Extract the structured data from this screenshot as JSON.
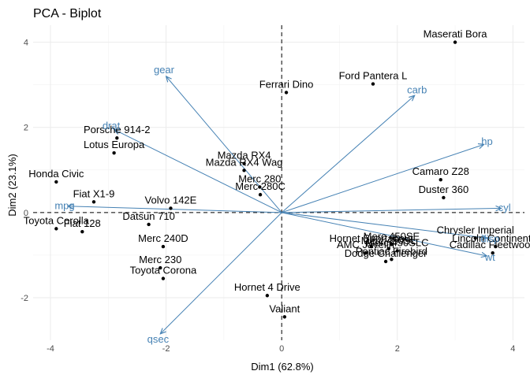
{
  "chart_data": {
    "type": "scatter",
    "title": "PCA - Biplot",
    "xlabel": "Dim1 (62.8%)",
    "ylabel": "Dim2 (23.1%)",
    "xlim": [
      -4.3,
      4.2
    ],
    "ylim": [
      -3.0,
      4.4
    ],
    "xticks": [
      -4,
      -2,
      0,
      2,
      4
    ],
    "yticks": [
      -2,
      0,
      2,
      4
    ],
    "grid": true,
    "reference_lines": {
      "x": 0,
      "y": 0,
      "style": "dashed"
    },
    "point_color": "#000000",
    "arrow_color": "#4682b4",
    "points": [
      {
        "label": "Maserati Bora",
        "x": 3.0,
        "y": 4.0
      },
      {
        "label": "Ford Pantera L",
        "x": 1.58,
        "y": 3.02
      },
      {
        "label": "Ferrari Dino",
        "x": 0.08,
        "y": 2.82
      },
      {
        "label": "Porsche 914-2",
        "x": -2.85,
        "y": 1.75
      },
      {
        "label": "Lotus Europa",
        "x": -2.9,
        "y": 1.4
      },
      {
        "label": "Mazda RX4",
        "x": -0.65,
        "y": 1.15
      },
      {
        "label": "Mazda RX4 Wag",
        "x": -0.65,
        "y": 0.99
      },
      {
        "label": "Merc 280",
        "x": -0.38,
        "y": 0.6
      },
      {
        "label": "Merc 280C",
        "x": -0.37,
        "y": 0.42
      },
      {
        "label": "Camaro Z28",
        "x": 2.75,
        "y": 0.77
      },
      {
        "label": "Duster 360",
        "x": 2.8,
        "y": 0.35
      },
      {
        "label": "Honda Civic",
        "x": -3.9,
        "y": 0.72
      },
      {
        "label": "Volvo 142E",
        "x": -1.92,
        "y": 0.1
      },
      {
        "label": "Fiat X1-9",
        "x": -3.25,
        "y": 0.25
      },
      {
        "label": "Toyota Corolla",
        "x": -3.9,
        "y": -0.38
      },
      {
        "label": "Fiat 128",
        "x": -3.45,
        "y": -0.45
      },
      {
        "label": "Datsun 710",
        "x": -2.3,
        "y": -0.28
      },
      {
        "label": "Merc 240D",
        "x": -2.05,
        "y": -0.8
      },
      {
        "label": "Merc 230",
        "x": -2.1,
        "y": -1.3
      },
      {
        "label": "Toyota Corona",
        "x": -2.05,
        "y": -1.55
      },
      {
        "label": "Hornet 4 Drive",
        "x": -0.25,
        "y": -1.95
      },
      {
        "label": "Valiant",
        "x": 0.05,
        "y": -2.45
      },
      {
        "label": "Chrysler Imperial",
        "x": 3.35,
        "y": -0.6
      },
      {
        "label": "Lincoln Continental",
        "x": 3.7,
        "y": -0.8
      },
      {
        "label": "Cadillac Fleetwood",
        "x": 3.65,
        "y": -0.95
      },
      {
        "label": "Merc 450SE",
        "x": 1.9,
        "y": -0.75
      },
      {
        "label": "Merc 450SL",
        "x": 1.85,
        "y": -0.85
      },
      {
        "label": "Merc 450SLC",
        "x": 2.0,
        "y": -0.9
      },
      {
        "label": "Hornet Sportabout",
        "x": 1.55,
        "y": -0.8
      },
      {
        "label": "AMC Javelin",
        "x": 1.45,
        "y": -0.95
      },
      {
        "label": "Pontiac Firebird",
        "x": 1.9,
        "y": -1.1
      },
      {
        "label": "Dodge Challenger",
        "x": 1.8,
        "y": -1.15
      }
    ],
    "vectors": [
      {
        "name": "gear",
        "x": -2.0,
        "y": 3.2
      },
      {
        "name": "drat",
        "x": -2.9,
        "y": 1.95
      },
      {
        "name": "carb",
        "x": 2.3,
        "y": 2.75
      },
      {
        "name": "hp",
        "x": 3.5,
        "y": 1.6
      },
      {
        "name": "cyl",
        "x": 3.8,
        "y": 0.1
      },
      {
        "name": "disp",
        "x": 3.55,
        "y": -0.6
      },
      {
        "name": "wt",
        "x": 3.55,
        "y": -1.02
      },
      {
        "name": "mpg",
        "x": -3.7,
        "y": 0.15
      },
      {
        "name": "qsec",
        "x": -2.1,
        "y": -2.85
      }
    ]
  }
}
